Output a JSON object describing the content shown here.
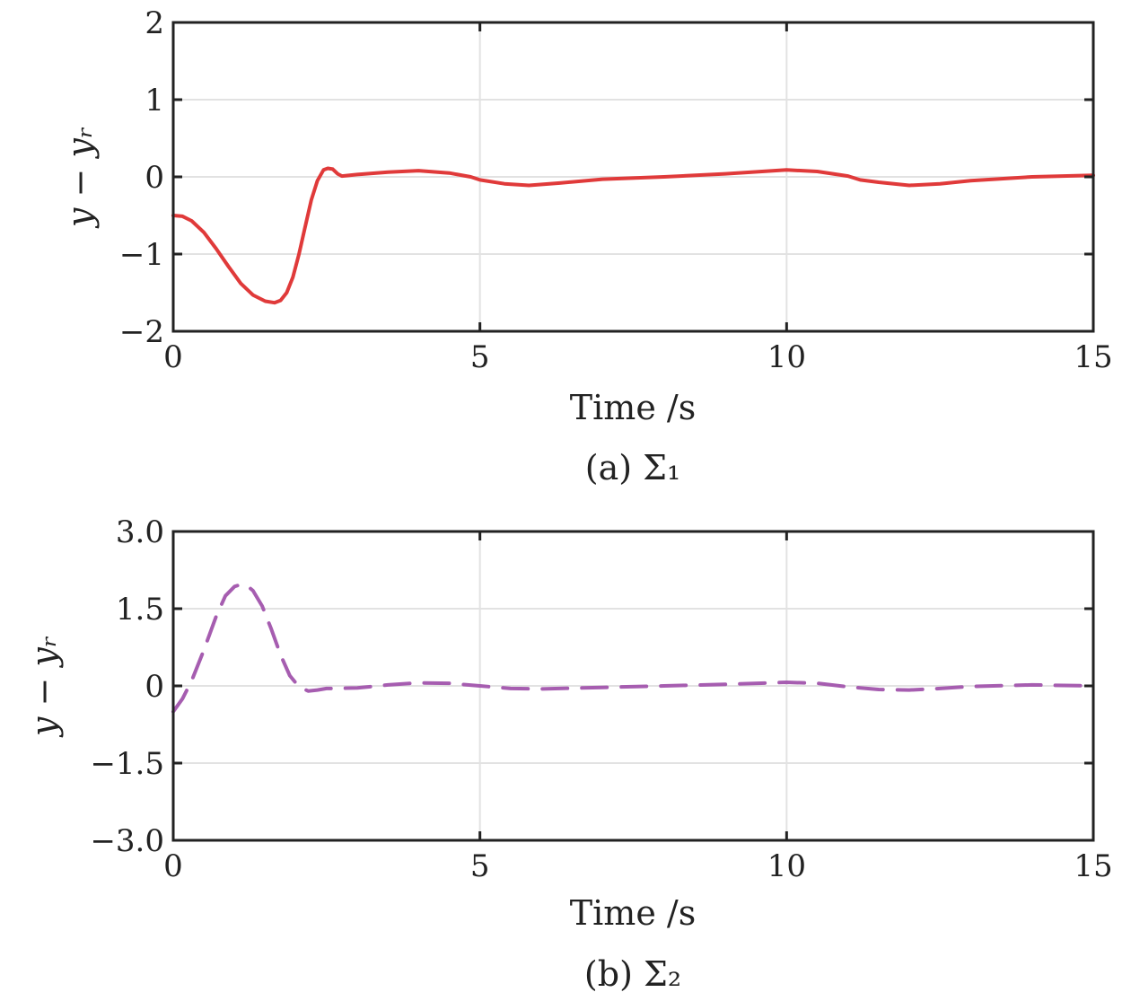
{
  "chart_data": [
    {
      "type": "line",
      "caption": "(a) Σ₁",
      "xlabel": "Time /s",
      "ylabel": "y − yᵣ",
      "xlim": [
        0,
        15
      ],
      "ylim": [
        -2,
        2
      ],
      "xticks": [
        0,
        5,
        10,
        15
      ],
      "xtick_labels": [
        "0",
        "5",
        "10",
        "15"
      ],
      "yticks": [
        2,
        1,
        0,
        -1,
        -2
      ],
      "ytick_labels": [
        "2",
        "1",
        "0",
        "−1",
        "−2"
      ],
      "grid": true,
      "series": [
        {
          "color": "#e03a3a",
          "dash": "solid",
          "x": [
            0,
            0.15,
            0.3,
            0.5,
            0.7,
            0.9,
            1.1,
            1.3,
            1.5,
            1.65,
            1.75,
            1.85,
            1.95,
            2.05,
            2.15,
            2.25,
            2.35,
            2.45,
            2.52,
            2.6,
            2.68,
            2.75,
            3.0,
            3.5,
            4.0,
            4.5,
            4.85,
            5.0,
            5.4,
            5.8,
            6.3,
            7.0,
            8.0,
            9.0,
            10.0,
            10.5,
            11.0,
            11.2,
            11.5,
            12.0,
            12.5,
            13.0,
            14.0,
            15.0
          ],
          "values": [
            -0.5,
            -0.51,
            -0.57,
            -0.72,
            -0.93,
            -1.16,
            -1.38,
            -1.53,
            -1.61,
            -1.63,
            -1.6,
            -1.5,
            -1.3,
            -1.0,
            -0.65,
            -0.3,
            -0.05,
            0.09,
            0.11,
            0.1,
            0.04,
            0.01,
            0.03,
            0.06,
            0.08,
            0.05,
            0.0,
            -0.04,
            -0.09,
            -0.11,
            -0.08,
            -0.03,
            0.0,
            0.04,
            0.09,
            0.07,
            0.01,
            -0.04,
            -0.07,
            -0.11,
            -0.09,
            -0.05,
            0.0,
            0.02
          ]
        }
      ]
    },
    {
      "type": "line",
      "caption": "(b) Σ₂",
      "xlabel": "Time /s",
      "ylabel": "y − yᵣ",
      "xlim": [
        0,
        15
      ],
      "ylim": [
        -3,
        3
      ],
      "xticks": [
        0,
        5,
        10,
        15
      ],
      "xtick_labels": [
        "0",
        "5",
        "10",
        "15"
      ],
      "yticks": [
        3,
        1.5,
        0,
        -1.5,
        -3
      ],
      "ytick_labels": [
        "3.0",
        "1.5",
        "0",
        "−1.5",
        "−3.0"
      ],
      "grid": true,
      "series": [
        {
          "color": "#a65db0",
          "dash": "dashed",
          "x": [
            0,
            0.15,
            0.3,
            0.5,
            0.7,
            0.85,
            1.0,
            1.1,
            1.2,
            1.3,
            1.45,
            1.6,
            1.75,
            1.9,
            2.05,
            2.2,
            2.35,
            2.5,
            3.0,
            3.5,
            4.0,
            4.5,
            5.0,
            5.5,
            6.0,
            7.0,
            8.0,
            9.0,
            10.0,
            10.5,
            11.0,
            11.5,
            12.0,
            12.5,
            13.0,
            14.0,
            15.0
          ],
          "values": [
            -0.5,
            -0.25,
            0.1,
            0.7,
            1.35,
            1.75,
            1.93,
            1.97,
            1.95,
            1.85,
            1.55,
            1.1,
            0.6,
            0.2,
            -0.02,
            -0.1,
            -0.08,
            -0.05,
            -0.04,
            0.02,
            0.06,
            0.05,
            0.0,
            -0.05,
            -0.06,
            -0.03,
            0.0,
            0.03,
            0.07,
            0.05,
            -0.02,
            -0.07,
            -0.08,
            -0.05,
            -0.01,
            0.02,
            0.0
          ]
        }
      ]
    }
  ]
}
